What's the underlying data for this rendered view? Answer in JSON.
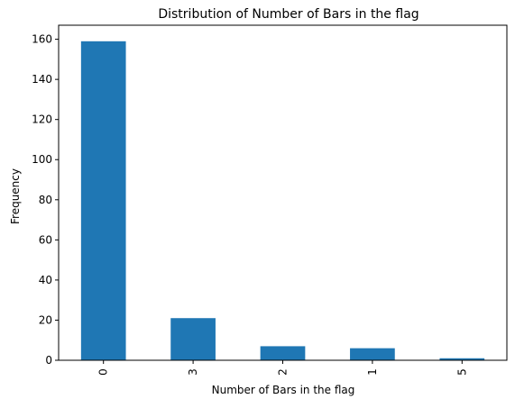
{
  "chart_data": {
    "type": "bar",
    "title": "Distribution of Number of Bars in the flag",
    "xlabel": "Number of Bars in the flag",
    "ylabel": "Frequency",
    "categories": [
      "0",
      "3",
      "2",
      "1",
      "5"
    ],
    "values": [
      159,
      21,
      7,
      6,
      1
    ],
    "ylim": [
      0,
      167
    ],
    "yticks": [
      0,
      20,
      40,
      60,
      80,
      100,
      120,
      140,
      160
    ],
    "ytick_labels": [
      "0",
      "20",
      "40",
      "60",
      "80",
      "100",
      "120",
      "140",
      "160"
    ],
    "bar_color": "#1f77b4",
    "grid": false,
    "legend": "none"
  }
}
